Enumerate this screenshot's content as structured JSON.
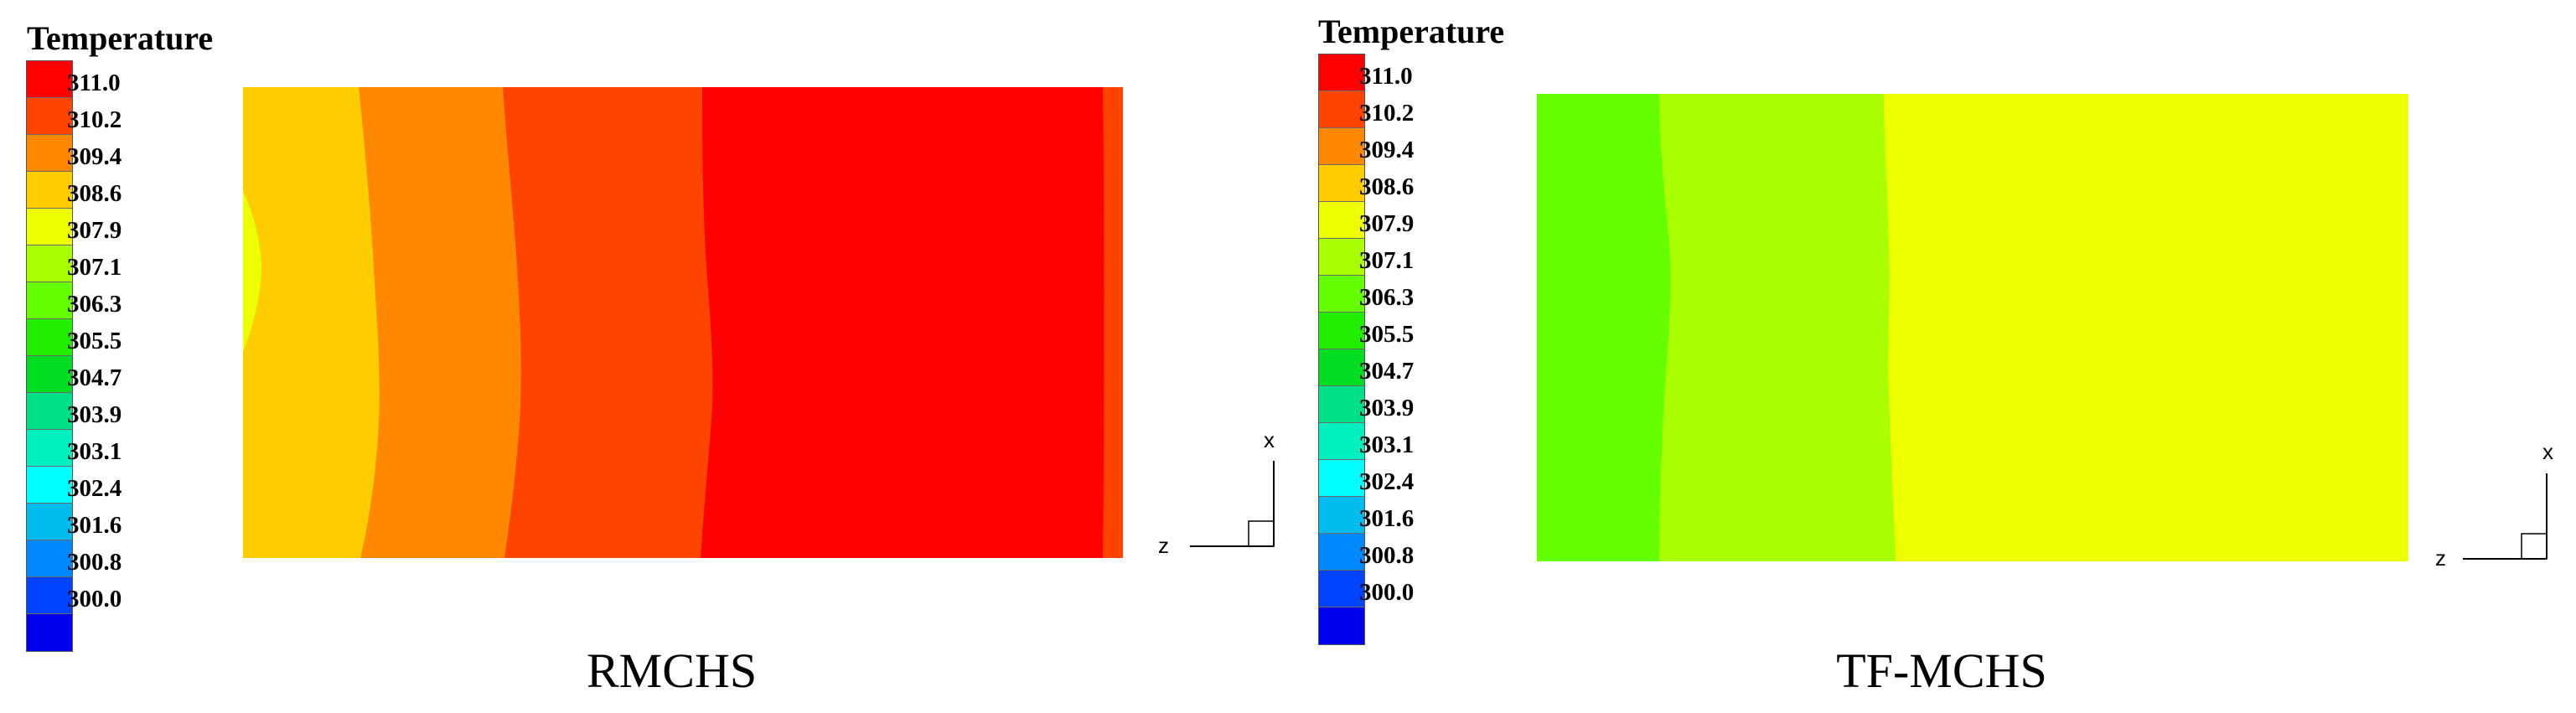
{
  "legend": {
    "title": "Temperature",
    "ticks": [
      "311.0",
      "310.2",
      "309.4",
      "308.6",
      "307.9",
      "307.1",
      "306.3",
      "305.5",
      "304.7",
      "303.9",
      "303.1",
      "302.4",
      "301.6",
      "300.8",
      "300.0"
    ],
    "colors": [
      "#FF0000",
      "#FF4400",
      "#FF8800",
      "#FFCC00",
      "#EEFF00",
      "#AAFF00",
      "#66FF00",
      "#22EE00",
      "#00DD22",
      "#00E088",
      "#00F0C0",
      "#00FFFF",
      "#00BBEE",
      "#0088FF",
      "#0044FF",
      "#0000EE"
    ]
  },
  "axes": {
    "vertical": "x",
    "horizontal": "z"
  },
  "panels": [
    {
      "caption": "RMCHS"
    },
    {
      "caption": "TF-MCHS"
    }
  ]
}
